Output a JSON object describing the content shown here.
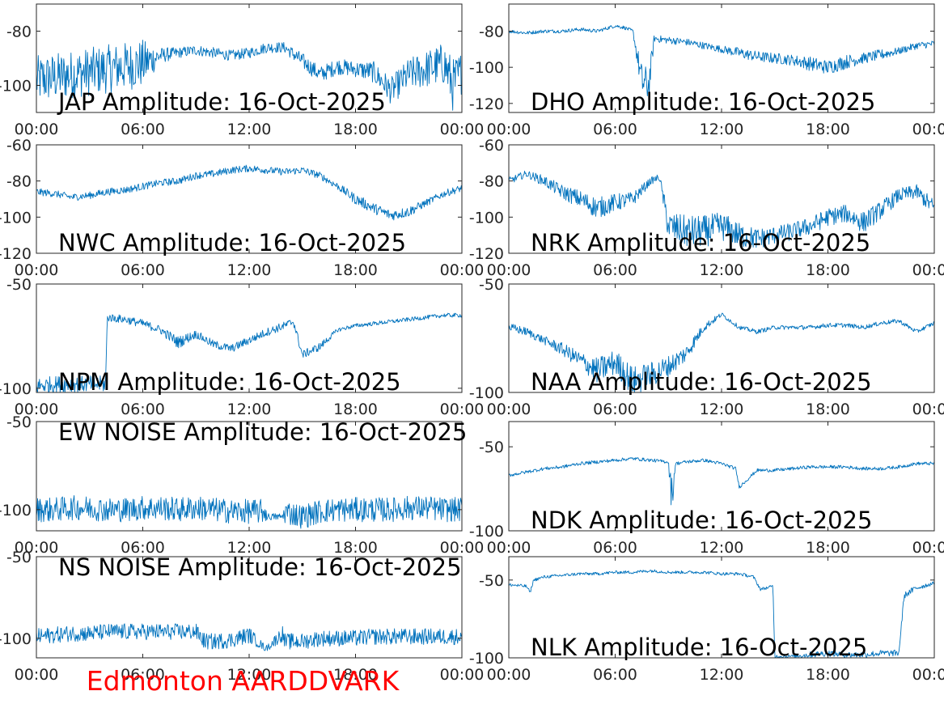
{
  "figure": {
    "station_label": "Edmonton AARDDVARK",
    "station_label_color": "#ff0000",
    "series_color": "#0072BD"
  },
  "chart_data": [
    {
      "type": "line",
      "title": "JAP Amplitude: 16-Oct-2025",
      "x_tick_labels": [
        "00:00",
        "06:00",
        "12:00",
        "18:00",
        "00:00"
      ],
      "y_ticks": [
        -80,
        -100
      ],
      "y_tick_labels": [
        "-80",
        "-100"
      ],
      "ylim": [
        -110,
        -70
      ],
      "xlim": [
        0,
        24
      ],
      "series": [
        {
          "x": [
            0,
            1,
            2,
            3,
            4,
            5,
            6,
            7,
            8,
            9,
            10,
            11,
            12,
            13,
            14,
            15,
            16,
            17,
            18,
            19,
            20,
            21,
            22,
            23,
            23.5,
            24
          ],
          "values": [
            -98,
            -97,
            -96,
            -95,
            -94,
            -93,
            -92,
            -89,
            -88,
            -87,
            -88,
            -89,
            -88,
            -86,
            -86,
            -91,
            -96,
            -93,
            -94,
            -95,
            -102,
            -96,
            -94,
            -92,
            -100,
            -95
          ],
          "noise": [
            9,
            9,
            9,
            9,
            9,
            9,
            9,
            3,
            2,
            2,
            2,
            2,
            2,
            2,
            2,
            3,
            3,
            3,
            3,
            4,
            5,
            6,
            7,
            8,
            10,
            8
          ]
        }
      ]
    },
    {
      "type": "line",
      "title": "DHO Amplitude: 16-Oct-2025",
      "x_tick_labels": [
        "00:00",
        "06:00",
        "12:00",
        "18:00",
        "00:00"
      ],
      "y_ticks": [
        -80,
        -100,
        -120
      ],
      "y_tick_labels": [
        "-80",
        "-100",
        "-120"
      ],
      "ylim": [
        -125,
        -65
      ],
      "xlim": [
        0,
        24
      ],
      "series": [
        {
          "x": [
            0,
            1,
            2,
            3,
            4,
            5,
            6,
            6.5,
            7,
            7.5,
            7.9,
            8.2,
            9,
            10,
            11,
            12,
            13,
            14,
            15,
            16,
            17,
            18,
            19,
            20,
            21,
            22,
            23,
            24
          ],
          "values": [
            -80,
            -81,
            -80,
            -80,
            -79,
            -80,
            -77,
            -78,
            -80,
            -108,
            -110,
            -84,
            -85,
            -86,
            -88,
            -90,
            -92,
            -94,
            -95,
            -96,
            -98,
            -100,
            -97,
            -95,
            -93,
            -91,
            -88,
            -87
          ],
          "noise": [
            1,
            1,
            1,
            1,
            1,
            1,
            1,
            1,
            1,
            10,
            10,
            2,
            2,
            2,
            2,
            2,
            3,
            3,
            3,
            3,
            4,
            4,
            4,
            3,
            3,
            2,
            2,
            2
          ]
        }
      ]
    },
    {
      "type": "line",
      "title": "NWC Amplitude: 16-Oct-2025",
      "x_tick_labels": [
        "00:00",
        "06:00",
        "12:00",
        "18:00",
        "00:00"
      ],
      "y_ticks": [
        -60,
        -80,
        -100,
        -120
      ],
      "y_tick_labels": [
        "-60",
        "-80",
        "-100",
        "-120"
      ],
      "ylim": [
        -120,
        -60
      ],
      "xlim": [
        0,
        24
      ],
      "series": [
        {
          "x": [
            0,
            1,
            2,
            3,
            4,
            5,
            6,
            7,
            8,
            9,
            10,
            11,
            12,
            13,
            14,
            15,
            16,
            17,
            18,
            19,
            20,
            21,
            22,
            23,
            24
          ],
          "values": [
            -86,
            -87,
            -89,
            -88,
            -86,
            -85,
            -83,
            -81,
            -80,
            -77,
            -76,
            -74,
            -73,
            -74,
            -75,
            -74,
            -77,
            -83,
            -90,
            -95,
            -99,
            -97,
            -92,
            -87,
            -84
          ],
          "noise": [
            2,
            2,
            2,
            2,
            2,
            2,
            2,
            2,
            2,
            2,
            2,
            2,
            2,
            2,
            2,
            2,
            2,
            2,
            3,
            3,
            3,
            3,
            2,
            2,
            2
          ]
        }
      ]
    },
    {
      "type": "line",
      "title": "NRK Amplitude: 16-Oct-2025",
      "x_tick_labels": [
        "00:00",
        "06:00",
        "12:00",
        "18:00",
        "00:00"
      ],
      "y_ticks": [
        -60,
        -80,
        -100,
        -120
      ],
      "y_tick_labels": [
        "-60",
        "-80",
        "-100",
        "-120"
      ],
      "ylim": [
        -120,
        -60
      ],
      "xlim": [
        0,
        24
      ],
      "series": [
        {
          "x": [
            0,
            1,
            2,
            3,
            4,
            5,
            6,
            7,
            8,
            8.5,
            9,
            10,
            11,
            12,
            13,
            14,
            15,
            16,
            17,
            18,
            19,
            20,
            21,
            22,
            23,
            24
          ],
          "values": [
            -80,
            -76,
            -80,
            -86,
            -90,
            -95,
            -92,
            -90,
            -80,
            -78,
            -105,
            -108,
            -108,
            -105,
            -110,
            -112,
            -110,
            -108,
            -105,
            -100,
            -98,
            -103,
            -96,
            -88,
            -86,
            -95
          ],
          "noise": [
            2,
            2,
            3,
            4,
            5,
            6,
            5,
            4,
            2,
            2,
            8,
            9,
            9,
            8,
            7,
            6,
            5,
            5,
            5,
            5,
            5,
            6,
            5,
            4,
            4,
            5
          ]
        }
      ]
    },
    {
      "type": "line",
      "title": "NPM Amplitude: 16-Oct-2025",
      "x_tick_labels": [
        "00:00",
        "06:00",
        "12:00",
        "18:00",
        "00:00"
      ],
      "y_ticks": [
        -50,
        -100
      ],
      "y_tick_labels": [
        "-50",
        "-100"
      ],
      "ylim": [
        -102,
        -50
      ],
      "xlim": [
        0,
        24
      ],
      "series": [
        {
          "x": [
            0,
            1,
            2,
            3,
            3.9,
            4,
            5,
            6,
            7,
            8,
            9,
            10,
            11,
            12,
            13,
            14,
            14.5,
            15,
            16,
            17,
            18,
            19,
            20,
            21,
            22,
            23,
            24
          ],
          "values": [
            -99,
            -98,
            -98,
            -98,
            -98,
            -66,
            -67,
            -69,
            -72,
            -78,
            -74,
            -79,
            -81,
            -77,
            -73,
            -70,
            -68,
            -84,
            -80,
            -72,
            -70,
            -69,
            -68,
            -67,
            -66,
            -65,
            -65
          ],
          "noise": [
            4,
            4,
            4,
            4,
            4,
            2,
            2,
            2,
            2,
            3,
            2,
            2,
            2,
            2,
            2,
            2,
            2,
            2,
            2,
            1,
            1,
            1,
            1,
            1,
            1,
            1,
            1
          ]
        }
      ]
    },
    {
      "type": "line",
      "title": "NAA Amplitude: 16-Oct-2025",
      "x_tick_labels": [
        "00:00",
        "06:00",
        "12:00",
        "18:00",
        "00:00"
      ],
      "y_ticks": [
        -50,
        -100
      ],
      "y_tick_labels": [
        "-50",
        "-100"
      ],
      "ylim": [
        -100,
        -50
      ],
      "xlim": [
        0,
        24
      ],
      "series": [
        {
          "x": [
            0,
            1,
            2,
            3,
            4,
            5,
            6,
            7,
            8,
            9,
            10,
            11,
            12,
            13,
            14,
            15,
            16,
            17,
            18,
            19,
            20,
            21,
            22,
            23,
            24
          ],
          "values": [
            -70,
            -72,
            -76,
            -80,
            -85,
            -90,
            -86,
            -95,
            -92,
            -88,
            -82,
            -70,
            -64,
            -70,
            -72,
            -70,
            -70,
            -70,
            -69,
            -69,
            -70,
            -68,
            -67,
            -72,
            -68
          ],
          "noise": [
            2,
            2,
            2,
            3,
            4,
            6,
            6,
            7,
            6,
            5,
            4,
            2,
            1,
            1,
            1,
            1,
            1,
            1,
            1,
            1,
            1,
            1,
            1,
            1,
            1
          ]
        }
      ]
    },
    {
      "type": "line",
      "title": "EW NOISE Amplitude: 16-Oct-2025",
      "x_tick_labels": [
        "00:00",
        "06:00",
        "12:00",
        "18:00",
        "00:00"
      ],
      "y_ticks": [
        -50,
        -100
      ],
      "y_tick_labels": [
        "-50",
        "-100"
      ],
      "ylim": [
        -112,
        -50
      ],
      "xlim": [
        0,
        24
      ],
      "series": [
        {
          "x": [
            0,
            1,
            2,
            3,
            4,
            5,
            6,
            7,
            8,
            9,
            10,
            11,
            12,
            12.9,
            13,
            13.9,
            14,
            15,
            16,
            17,
            18,
            19,
            20,
            21,
            22,
            23,
            24
          ],
          "values": [
            -100,
            -100,
            -99,
            -99,
            -100,
            -100,
            -99,
            -99,
            -100,
            -99,
            -100,
            -101,
            -101,
            -101,
            -104,
            -104,
            -101,
            -104,
            -101,
            -100,
            -100,
            -100,
            -100,
            -99,
            -99,
            -100,
            -100
          ],
          "noise": [
            7,
            7,
            7,
            7,
            7,
            7,
            7,
            7,
            7,
            7,
            7,
            7,
            7,
            7,
            2,
            2,
            7,
            7,
            7,
            7,
            7,
            7,
            7,
            7,
            7,
            7,
            7
          ]
        }
      ]
    },
    {
      "type": "line",
      "title": "NDK Amplitude: 16-Oct-2025",
      "x_tick_labels": [
        "00:00",
        "06:00",
        "12:00",
        "18:00",
        "00:00"
      ],
      "y_ticks": [
        -50,
        -100
      ],
      "y_tick_labels": [
        "-50",
        "-100"
      ],
      "ylim": [
        -100,
        -35
      ],
      "xlim": [
        0,
        24
      ],
      "series": [
        {
          "x": [
            0,
            1,
            2,
            3,
            4,
            5,
            6,
            7,
            8,
            9,
            9.2,
            9.4,
            10,
            11,
            12,
            12.8,
            13,
            14,
            15,
            16,
            17,
            18,
            19,
            20,
            21,
            22,
            23,
            24
          ],
          "values": [
            -67,
            -65,
            -63,
            -62,
            -60,
            -59,
            -58,
            -57,
            -58,
            -59,
            -80,
            -60,
            -59,
            -58,
            -60,
            -63,
            -74,
            -64,
            -64,
            -63,
            -62,
            -62,
            -62,
            -63,
            -63,
            -62,
            -60,
            -60
          ],
          "noise": [
            1,
            1,
            1,
            1,
            1,
            1,
            1,
            1,
            1,
            1,
            12,
            1,
            1,
            1,
            1,
            1,
            1,
            1,
            1,
            1,
            1,
            1,
            1,
            1,
            1,
            1,
            1,
            1
          ]
        }
      ]
    },
    {
      "type": "line",
      "title": "NS NOISE Amplitude: 16-Oct-2025",
      "x_tick_labels": [
        "00:00",
        "06:00",
        "12:00",
        "18:00",
        "00:00"
      ],
      "y_ticks": [
        -50,
        -100
      ],
      "y_tick_labels": [
        "-50",
        "-100"
      ],
      "ylim": [
        -112,
        -50
      ],
      "xlim": [
        0,
        24
      ],
      "series": [
        {
          "x": [
            0,
            1,
            2,
            3,
            4,
            5,
            6,
            7,
            8,
            9,
            9.5,
            10,
            11,
            12,
            12.9,
            13,
            13.9,
            14,
            15,
            16,
            17,
            18,
            19,
            20,
            21,
            22,
            23,
            24
          ],
          "values": [
            -99,
            -98,
            -97,
            -97,
            -96,
            -96,
            -96,
            -96,
            -96,
            -96,
            -102,
            -102,
            -101,
            -98,
            -106,
            -106,
            -97,
            -102,
            -102,
            -100,
            -100,
            -100,
            -99,
            -99,
            -99,
            -99,
            -99,
            -99
          ],
          "noise": [
            5,
            5,
            5,
            5,
            5,
            5,
            5,
            5,
            5,
            5,
            5,
            5,
            5,
            5,
            2,
            2,
            5,
            5,
            5,
            5,
            5,
            5,
            5,
            5,
            5,
            5,
            5,
            5
          ]
        }
      ]
    },
    {
      "type": "line",
      "title": "NLK Amplitude: 16-Oct-2025",
      "x_tick_labels": [
        "00:00",
        "06:00",
        "12:00",
        "18:00",
        "00:00"
      ],
      "y_ticks": [
        -50,
        -100
      ],
      "y_tick_labels": [
        "-50",
        "-100"
      ],
      "ylim": [
        -100,
        -35
      ],
      "xlim": [
        0,
        24
      ],
      "series": [
        {
          "x": [
            0,
            1,
            1.2,
            1.4,
            2,
            3,
            4,
            5,
            6,
            7,
            8,
            9,
            10,
            11,
            12,
            13,
            13.8,
            14.2,
            14.9,
            15,
            16,
            17,
            18,
            19,
            20,
            21,
            22,
            22.3,
            23,
            24
          ],
          "values": [
            -53,
            -54,
            -58,
            -50,
            -48,
            -47,
            -46,
            -46,
            -45,
            -45,
            -44,
            -45,
            -45,
            -45,
            -46,
            -46,
            -48,
            -56,
            -54,
            -99,
            -99,
            -98,
            -97,
            -98,
            -98,
            -97,
            -97,
            -60,
            -55,
            -52
          ],
          "noise": [
            1,
            1,
            1,
            1,
            1,
            1,
            1,
            1,
            1,
            1,
            1,
            1,
            1,
            1,
            1,
            1,
            1,
            1,
            1,
            1,
            1,
            2,
            2,
            2,
            2,
            2,
            2,
            2,
            2,
            1
          ]
        }
      ]
    }
  ]
}
